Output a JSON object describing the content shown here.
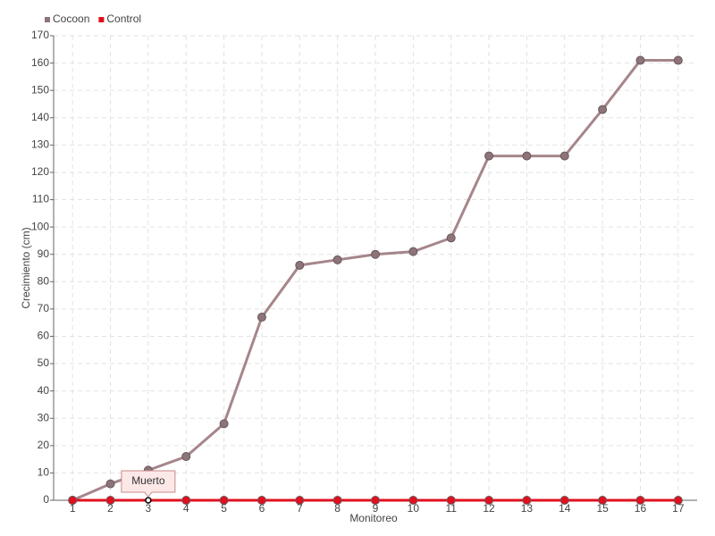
{
  "chart_data": {
    "type": "line",
    "categories": [
      "1",
      "2",
      "3",
      "4",
      "5",
      "6",
      "7",
      "8",
      "9",
      "10",
      "11",
      "12",
      "13",
      "14",
      "15",
      "16",
      "17"
    ],
    "series": [
      {
        "name": "Cocoon",
        "color": "#a5868b",
        "marker_color": "#8c7479",
        "values": [
          0,
          6,
          11,
          16,
          28,
          67,
          86,
          88,
          90,
          91,
          96,
          126,
          126,
          126,
          143,
          161,
          161
        ]
      },
      {
        "name": "Control",
        "color": "#e0101e",
        "marker_color": "#e0101e",
        "values": [
          0,
          0,
          0,
          0,
          0,
          0,
          0,
          0,
          0,
          0,
          0,
          0,
          0,
          0,
          0,
          0,
          0
        ]
      }
    ],
    "ylim": [
      0,
      170
    ],
    "yticks": [
      0,
      10,
      20,
      30,
      40,
      50,
      60,
      70,
      80,
      90,
      100,
      110,
      120,
      130,
      140,
      150,
      160,
      170
    ],
    "x_label": "Monitoreo",
    "y_label": "Crecimiento (cm)",
    "grid": true,
    "legend": "top-left",
    "annotation": {
      "text": "Muerto",
      "series": "Control",
      "category": "3"
    }
  }
}
